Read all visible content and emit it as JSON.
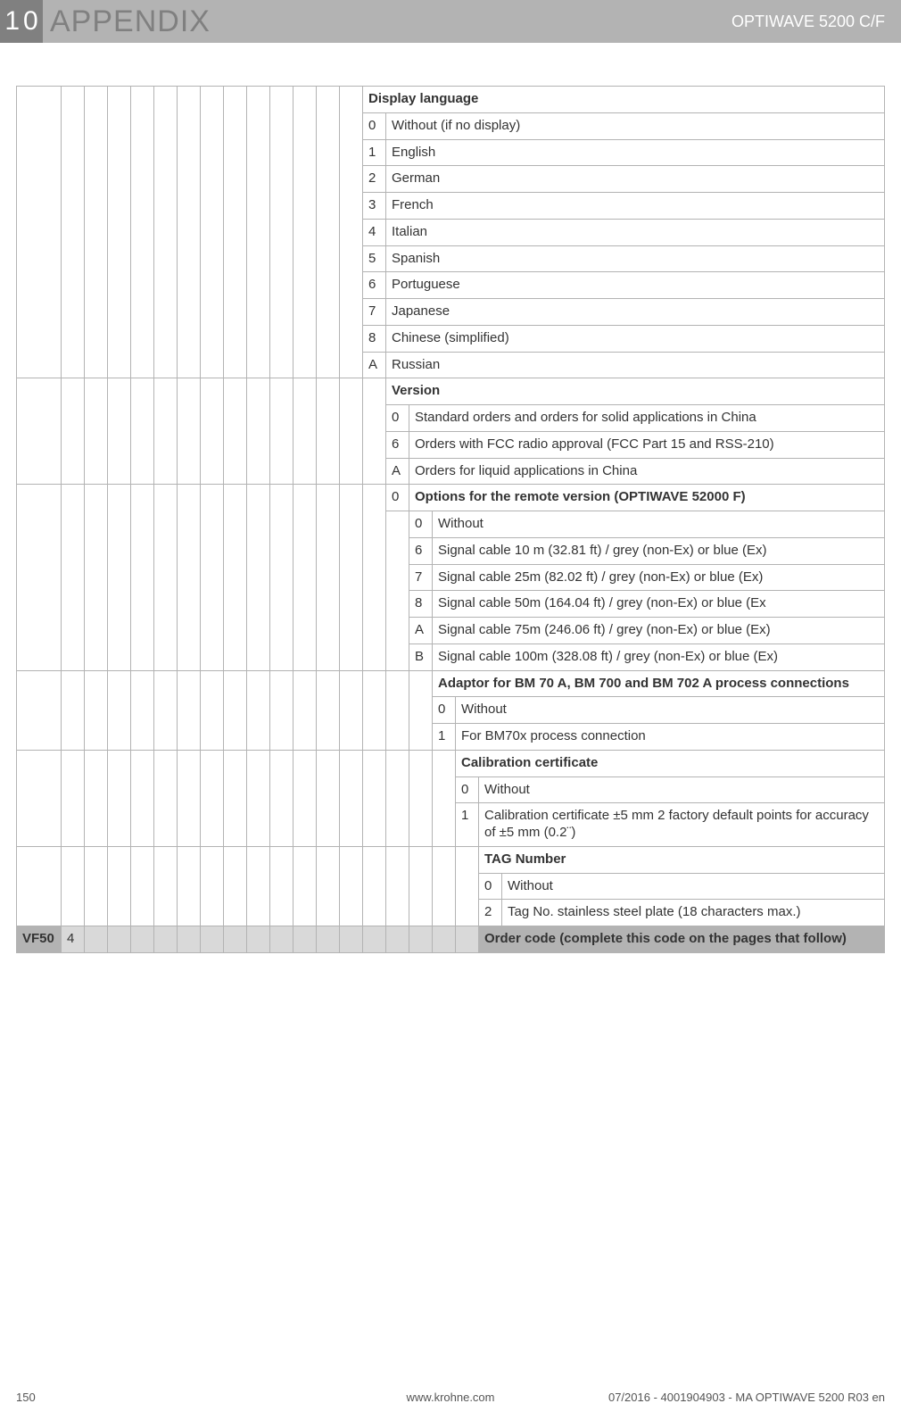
{
  "header": {
    "chapter_num": "10",
    "title": "APPENDIX",
    "doc_name": "OPTIWAVE 5200 C/F"
  },
  "sections": {
    "display_language": {
      "title": "Display language",
      "rows": [
        {
          "code": "0",
          "label": "Without (if no display)"
        },
        {
          "code": "1",
          "label": "English"
        },
        {
          "code": "2",
          "label": "German"
        },
        {
          "code": "3",
          "label": "French"
        },
        {
          "code": "4",
          "label": "Italian"
        },
        {
          "code": "5",
          "label": "Spanish"
        },
        {
          "code": "6",
          "label": "Portuguese"
        },
        {
          "code": "7",
          "label": "Japanese"
        },
        {
          "code": "8",
          "label": "Chinese (simplified)"
        },
        {
          "code": "A",
          "label": "Russian"
        }
      ]
    },
    "version": {
      "title": "Version",
      "rows": [
        {
          "code": "0",
          "label": "Standard orders and orders for solid applications in China"
        },
        {
          "code": "6",
          "label": "Orders with FCC radio approval (FCC Part 15 and RSS-210)"
        },
        {
          "code": "A",
          "label": "Orders for liquid applications in China"
        }
      ]
    },
    "options_remote": {
      "lead_code": "0",
      "title": "Options for the remote version (OPTIWAVE 52000 F)",
      "rows": [
        {
          "code": "0",
          "label": "Without"
        },
        {
          "code": "6",
          "label": "Signal cable 10 m (32.81 ft) / grey (non-Ex) or blue (Ex)"
        },
        {
          "code": "7",
          "label": "Signal cable 25m (82.02 ft) / grey (non-Ex) or blue (Ex)"
        },
        {
          "code": "8",
          "label": "Signal cable 50m (164.04 ft) / grey (non-Ex) or blue (Ex"
        },
        {
          "code": "A",
          "label": "Signal cable 75m (246.06 ft) / grey (non-Ex) or blue (Ex)"
        },
        {
          "code": "B",
          "label": "Signal cable 100m (328.08 ft) / grey (non-Ex) or blue (Ex)"
        }
      ]
    },
    "adaptor": {
      "title": "Adaptor for BM 70 A, BM 700 and BM 702 A process connections",
      "rows": [
        {
          "code": "0",
          "label": "Without"
        },
        {
          "code": "1",
          "label": "For BM70x process connection"
        }
      ]
    },
    "calibration": {
      "title": "Calibration certificate",
      "rows": [
        {
          "code": "0",
          "label": "Without"
        },
        {
          "code": "1",
          "label": "Calibration certificate ±5 mm 2 factory default points for accuracy of ±5 mm (0.2¨)"
        }
      ]
    },
    "tag": {
      "title": "TAG Number",
      "rows": [
        {
          "code": "0",
          "label": "Without"
        },
        {
          "code": "2",
          "label": "Tag No. stainless steel plate (18 characters max.)"
        }
      ]
    }
  },
  "footer_row": {
    "prefix": "VF50",
    "digit": "4",
    "label": "Order code (complete this code on the pages that follow)"
  },
  "page_footer": {
    "page_num": "150",
    "url": "www.krohne.com",
    "docref": "07/2016 - 4001904903 - MA OPTIWAVE 5200 R03 en"
  }
}
